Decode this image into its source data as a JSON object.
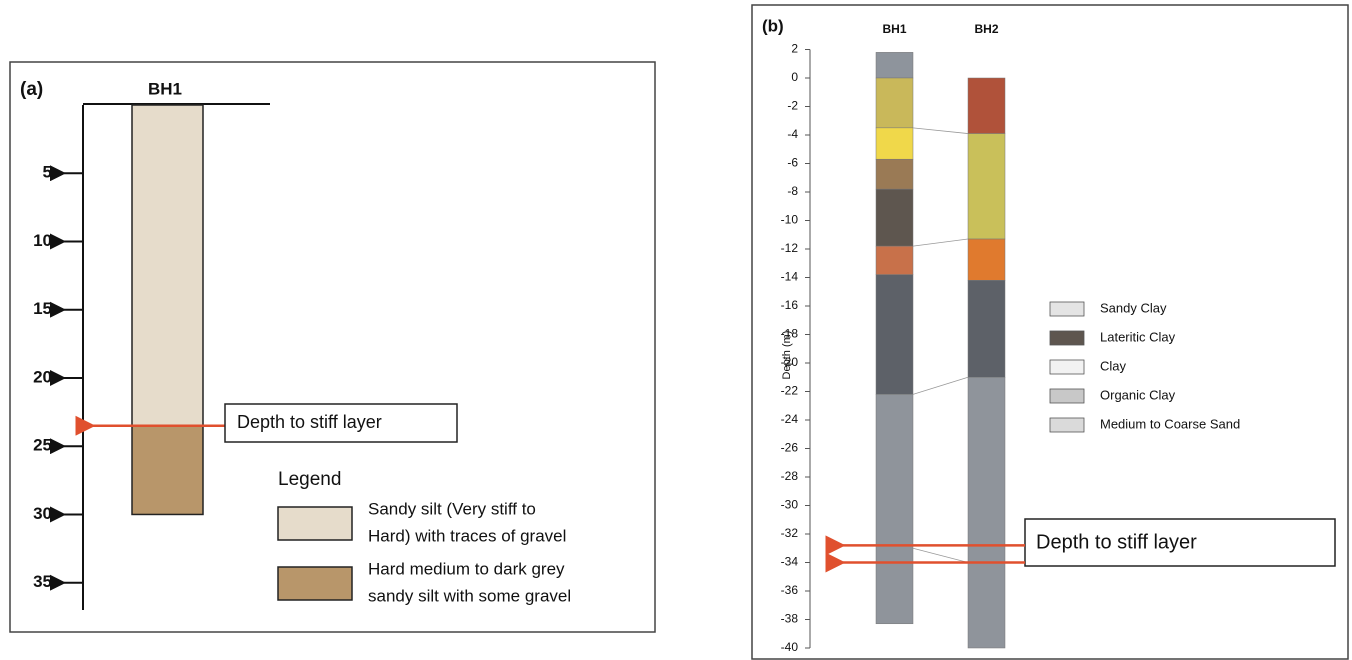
{
  "panel_a": {
    "label": "(a)",
    "borehole": "BH1",
    "ylim": [
      0,
      37
    ],
    "yticks": [
      5,
      10,
      15,
      20,
      25,
      30,
      35
    ],
    "layers": [
      {
        "top": 0,
        "bottom": 23.5,
        "color": "#e6dccb"
      },
      {
        "top": 23.5,
        "bottom": 30,
        "color": "#b8966a"
      }
    ],
    "annotation": {
      "text": "Depth to stiff layer",
      "depth": 23.5
    },
    "legend": {
      "title": "Legend",
      "items": [
        {
          "lines": [
            "Sandy silt (Very stiff to",
            "Hard) with traces of gravel"
          ],
          "color": "#e6dccb"
        },
        {
          "lines": [
            "Hard medium  to dark grey",
            "sandy silt with some gravel"
          ],
          "color": "#b8966a"
        }
      ]
    }
  },
  "panel_b": {
    "label": "(b)",
    "y_label": "Depth (m)",
    "ylim": [
      -40,
      2
    ],
    "yticks": [
      2,
      0,
      -2,
      -4,
      -6,
      -8,
      -10,
      -12,
      -14,
      -16,
      -18,
      -20,
      -22,
      -24,
      -26,
      -28,
      -30,
      -32,
      -34,
      -36,
      -38,
      -40
    ],
    "boreholes": [
      {
        "name": "BH1",
        "layers": [
          {
            "top": 1.8,
            "bottom": 0,
            "color": "#8e949c"
          },
          {
            "top": 0,
            "bottom": -3.5,
            "color": "#c9b85a"
          },
          {
            "top": -3.5,
            "bottom": -5.7,
            "color": "#f0d84a"
          },
          {
            "top": -5.7,
            "bottom": -7.8,
            "color": "#9a7a55"
          },
          {
            "top": -7.8,
            "bottom": -11.8,
            "color": "#5e564f"
          },
          {
            "top": -11.8,
            "bottom": -13.8,
            "color": "#c8714a"
          },
          {
            "top": -13.8,
            "bottom": -22.2,
            "color": "#5d6168"
          },
          {
            "top": -22.2,
            "bottom": -38.3,
            "color": "#8f949b"
          }
        ]
      },
      {
        "name": "BH2",
        "layers": [
          {
            "top": 0,
            "bottom": -3.9,
            "color": "#b0523a"
          },
          {
            "top": -3.9,
            "bottom": -11.3,
            "color": "#c9c05a"
          },
          {
            "top": -11.3,
            "bottom": -14.2,
            "color": "#e07a2e"
          },
          {
            "top": -14.2,
            "bottom": -21,
            "color": "#5d6168"
          },
          {
            "top": -21,
            "bottom": -40,
            "color": "#8f949b"
          }
        ]
      }
    ],
    "correlations": [
      {
        "from": -3.5,
        "to": -3.9
      },
      {
        "from": -11.8,
        "to": -11.3
      },
      {
        "from": -22.2,
        "to": -21
      },
      {
        "from": -33,
        "to": -34
      }
    ],
    "annotation": {
      "text": "Depth to stiff layer",
      "depths": [
        -32.8,
        -34
      ]
    },
    "legend": [
      {
        "label": "Sandy Clay",
        "color": "#e4e4e4"
      },
      {
        "label": "Lateritic Clay",
        "color": "#5e564f"
      },
      {
        "label": "Clay",
        "color": "#f2f2f2"
      },
      {
        "label": "Organic Clay",
        "color": "#c8c8c8"
      },
      {
        "label": "Medium to Coarse Sand",
        "color": "#dadada"
      }
    ]
  }
}
